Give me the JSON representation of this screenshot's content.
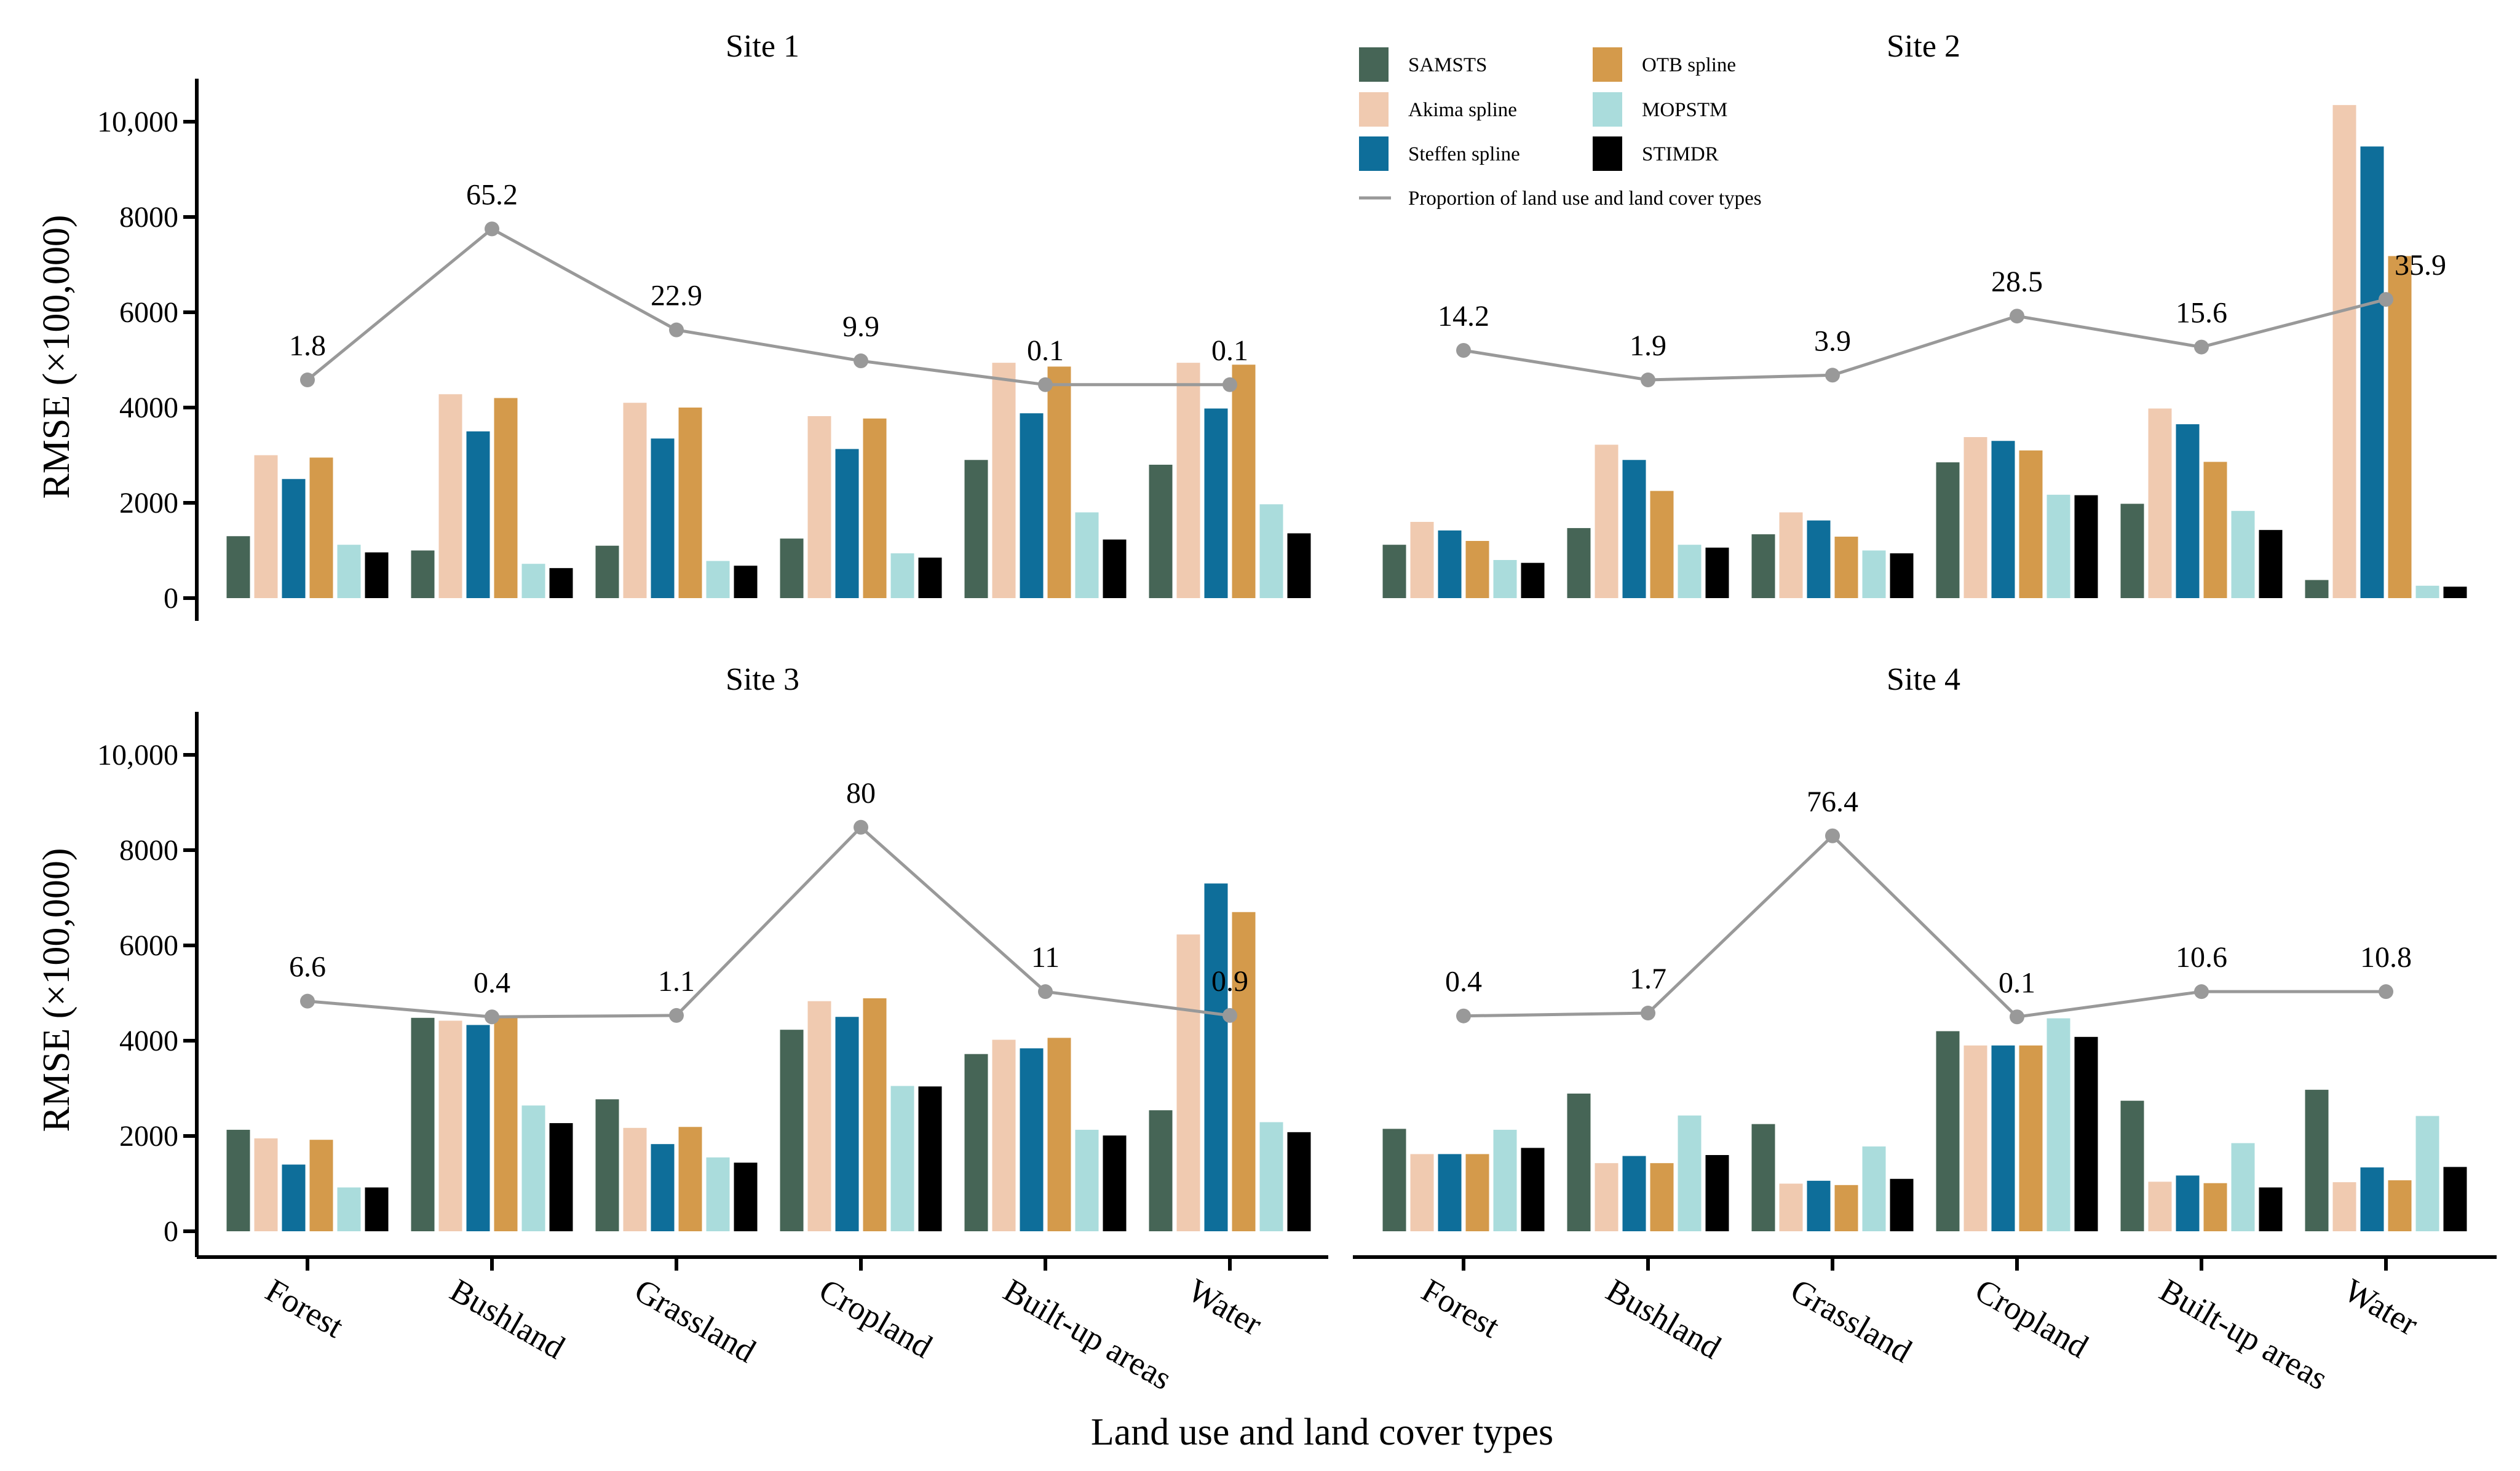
{
  "chart_data": {
    "type": "bar",
    "figure_xlabel": "Land use and land cover types",
    "ylabel": "RMSE (×100,000)",
    "ylim": [
      0,
      11000
    ],
    "yticks": [
      0,
      2000,
      4000,
      6000,
      8000,
      10000
    ],
    "ytick_labels": [
      "0",
      "2000",
      "4000",
      "6000",
      "8000",
      "10,000"
    ],
    "categories": [
      "Forest",
      "Bushland",
      "Grassland",
      "Cropland",
      "Built-up areas",
      "Water"
    ],
    "legend": {
      "position": "top-center",
      "series": [
        {
          "name": "SAMSTS",
          "color": "#466556"
        },
        {
          "name": "Akima spline",
          "color": "#F0CAB0"
        },
        {
          "name": "Steffen spline",
          "color": "#0E6E9A"
        },
        {
          "name": "OTB spline",
          "color": "#D49A4B"
        },
        {
          "name": "MOPSTM",
          "color": "#AADCDC"
        },
        {
          "name": "STIMDR",
          "color": "#000000"
        }
      ],
      "line_label": "Proportion of land use and land cover types",
      "line_color": "#999999"
    },
    "panels": [
      {
        "title": "Site 1",
        "series": [
          {
            "name": "SAMSTS",
            "values": [
              1300,
              1000,
              1100,
              1250,
              2900,
              2800
            ]
          },
          {
            "name": "Akima spline",
            "values": [
              3000,
              4280,
              4100,
              3820,
              4940,
              4940
            ]
          },
          {
            "name": "Steffen spline",
            "values": [
              2500,
              3500,
              3350,
              3130,
              3880,
              3980
            ]
          },
          {
            "name": "OTB spline",
            "values": [
              2950,
              4200,
              4000,
              3770,
              4860,
              4900
            ]
          },
          {
            "name": "MOPSTM",
            "values": [
              1120,
              720,
              780,
              940,
              1800,
              1970
            ]
          },
          {
            "name": "STIMDR",
            "values": [
              960,
              630,
              680,
              850,
              1230,
              1360
            ]
          }
        ],
        "proportion": [
          1.8,
          65.2,
          22.9,
          9.9,
          0.1,
          0.1
        ],
        "proportion_y": [
          4580,
          7750,
          5630,
          4980,
          4480,
          4480
        ]
      },
      {
        "title": "Site 2",
        "series": [
          {
            "name": "SAMSTS",
            "values": [
              1120,
              1470,
              1340,
              2850,
              1980,
              380
            ]
          },
          {
            "name": "Akima spline",
            "values": [
              1600,
              3220,
              1800,
              3380,
              3980,
              10350
            ]
          },
          {
            "name": "Steffen spline",
            "values": [
              1420,
              2900,
              1630,
              3300,
              3650,
              9480
            ]
          },
          {
            "name": "OTB spline",
            "values": [
              1200,
              2250,
              1290,
              3100,
              2860,
              7180
            ]
          },
          {
            "name": "MOPSTM",
            "values": [
              800,
              1120,
              1000,
              2170,
              1830,
              260
            ]
          },
          {
            "name": "STIMDR",
            "values": [
              740,
              1060,
              940,
              2160,
              1430,
              240
            ]
          }
        ],
        "proportion": [
          14.2,
          1.9,
          3.9,
          28.5,
          15.6,
          35.9
        ],
        "proportion_y": [
          5200,
          4580,
          4680,
          5920,
          5270,
          6270
        ]
      },
      {
        "title": "Site 3",
        "series": [
          {
            "name": "SAMSTS",
            "values": [
              2130,
              4480,
              2770,
              4230,
              3720,
              2540
            ]
          },
          {
            "name": "Akima spline",
            "values": [
              1950,
              4420,
              2170,
              4830,
              4020,
              6230
            ]
          },
          {
            "name": "Steffen spline",
            "values": [
              1400,
              4330,
              1830,
              4500,
              3840,
              7300
            ]
          },
          {
            "name": "OTB spline",
            "values": [
              1920,
              4480,
              2190,
              4890,
              4060,
              6700
            ]
          },
          {
            "name": "MOPSTM",
            "values": [
              920,
              2640,
              1550,
              3050,
              2130,
              2290
            ]
          },
          {
            "name": "STIMDR",
            "values": [
              920,
              2270,
              1440,
              3040,
              2010,
              2080
            ]
          }
        ],
        "proportion": [
          6.6,
          0.4,
          1.1,
          80,
          11,
          0.9
        ],
        "proportion_y": [
          4830,
          4500,
          4530,
          8480,
          5030,
          4530
        ]
      },
      {
        "title": "Site 4",
        "series": [
          {
            "name": "SAMSTS",
            "values": [
              2150,
              2890,
              2250,
              4200,
              2740,
              2970
            ]
          },
          {
            "name": "Akima spline",
            "values": [
              1620,
              1430,
              1000,
              3900,
              1040,
              1030
            ]
          },
          {
            "name": "Steffen spline",
            "values": [
              1620,
              1580,
              1060,
              3900,
              1170,
              1340
            ]
          },
          {
            "name": "OTB spline",
            "values": [
              1620,
              1430,
              970,
              3900,
              1010,
              1070
            ]
          },
          {
            "name": "MOPSTM",
            "values": [
              2130,
              2430,
              1780,
              4470,
              1850,
              2420
            ]
          },
          {
            "name": "STIMDR",
            "values": [
              1750,
              1600,
              1100,
              4080,
              920,
              1350
            ]
          }
        ],
        "proportion": [
          0.4,
          1.7,
          76.4,
          0.1,
          10.6,
          10.8
        ],
        "proportion_y": [
          4520,
          4580,
          8300,
          4500,
          5030,
          5030
        ]
      }
    ]
  }
}
